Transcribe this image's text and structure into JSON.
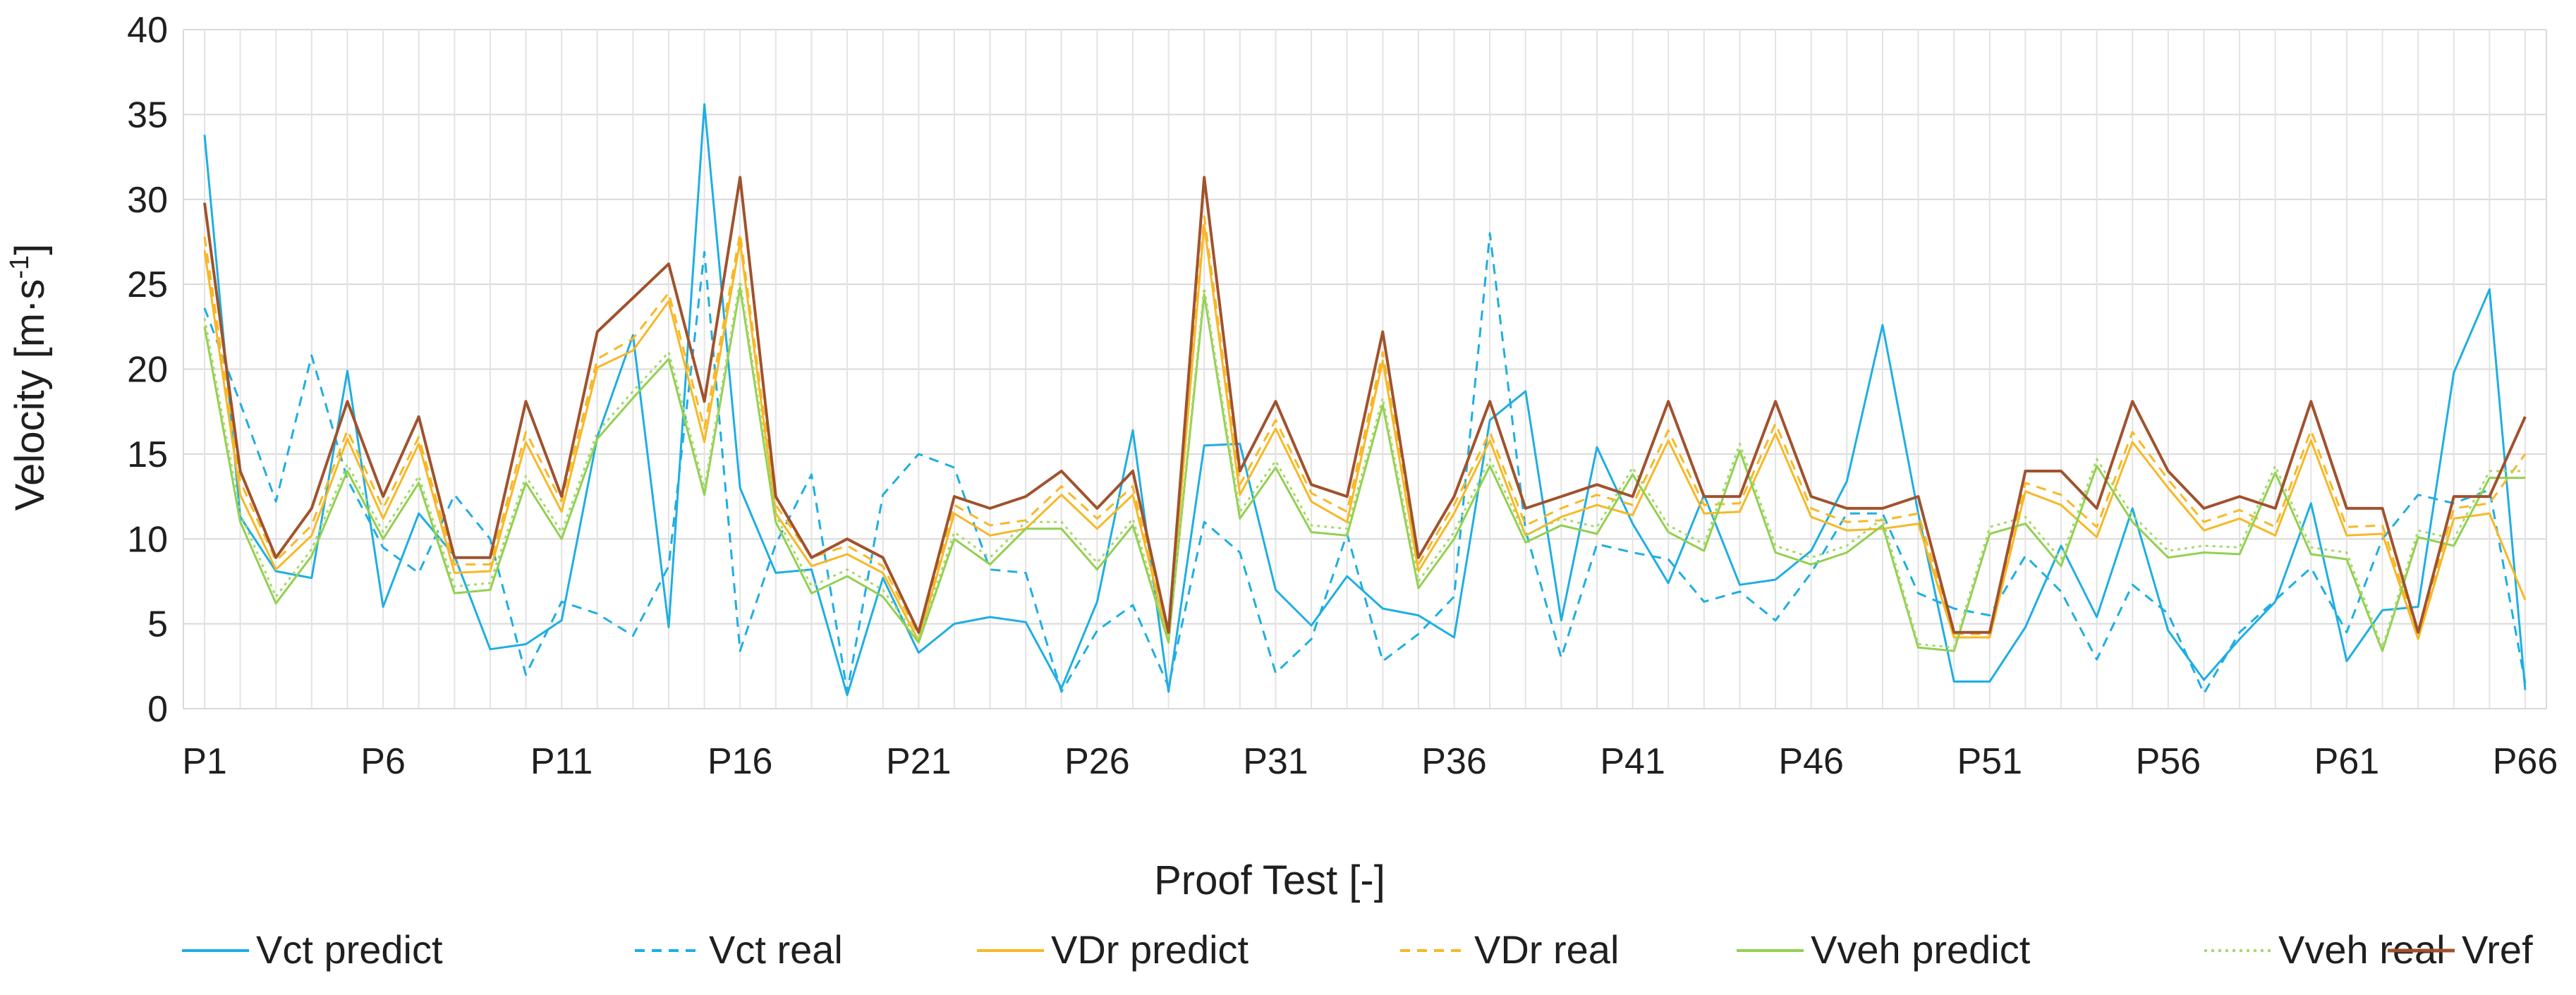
{
  "chart_data": {
    "type": "line",
    "title": "",
    "xlabel": "Proof Test [-]",
    "ylabel": "Velocity [m·s-1]",
    "ylabel_parts": {
      "base": "Velocity [m·s",
      "sup": "-1",
      "end": "]"
    },
    "ylim": [
      0,
      40
    ],
    "yticks": [
      0,
      5,
      10,
      15,
      20,
      25,
      30,
      35,
      40
    ],
    "grid": true,
    "legend_position": "bottom",
    "categories": [
      "P1",
      "P2",
      "P3",
      "P4",
      "P5",
      "P6",
      "P7",
      "P8",
      "P9",
      "P10",
      "P11",
      "P12",
      "P13",
      "P14",
      "P15",
      "P16",
      "P17",
      "P18",
      "P19",
      "P20",
      "P21",
      "P22",
      "P23",
      "P24",
      "P25",
      "P26",
      "P27",
      "P28",
      "P29",
      "P30",
      "P31",
      "P32",
      "P33",
      "P34",
      "P35",
      "P36",
      "P37",
      "P38",
      "P39",
      "P40",
      "P41",
      "P42",
      "P43",
      "P44",
      "P45",
      "P46",
      "P47",
      "P48",
      "P49",
      "P50",
      "P51",
      "P52",
      "P53",
      "P54",
      "P55",
      "P56",
      "P57",
      "P58",
      "P59",
      "P60",
      "P61",
      "P62",
      "P63",
      "P64",
      "P65",
      "P66"
    ],
    "tick_labels": [
      "P1",
      "P6",
      "P11",
      "P16",
      "P21",
      "P26",
      "P31",
      "P36",
      "P41",
      "P46",
      "P51",
      "P56",
      "P61",
      "P66"
    ],
    "series": [
      {
        "name": "Vct predict",
        "color": "#1eaee3",
        "dash": "solid",
        "width": 3,
        "values": [
          33.8,
          11.3,
          8.1,
          7.7,
          19.9,
          6.0,
          11.5,
          9.0,
          3.5,
          3.8,
          5.2,
          16.0,
          22.0,
          4.8,
          35.6,
          13.0,
          8.0,
          8.2,
          0.8,
          7.7,
          3.3,
          5.0,
          5.4,
          5.1,
          1.2,
          6.3,
          16.4,
          1.0,
          15.5,
          15.6,
          7.0,
          4.9,
          7.8,
          5.9,
          5.5,
          4.2,
          17.0,
          18.7,
          5.2,
          15.4,
          10.9,
          7.4,
          12.6,
          7.3,
          7.6,
          9.3,
          13.4,
          22.6,
          11.5,
          1.6,
          1.6,
          4.8,
          9.6,
          5.4,
          11.8,
          4.6,
          1.7,
          4.1,
          6.3,
          12.1,
          2.8,
          5.8,
          6.0,
          19.8,
          24.7,
          1.1
        ]
      },
      {
        "name": "Vct real",
        "color": "#1eaee3",
        "dash": "dashed",
        "width": 3,
        "values": [
          23.6,
          18.0,
          12.2,
          20.8,
          13.5,
          9.5,
          8.0,
          12.6,
          10.0,
          2.0,
          6.3,
          5.6,
          4.3,
          8.4,
          26.9,
          3.4,
          9.7,
          13.8,
          1.0,
          12.6,
          15.0,
          14.2,
          8.2,
          8.0,
          1.0,
          4.6,
          6.1,
          1.3,
          11.0,
          9.2,
          2.1,
          4.1,
          10.3,
          2.8,
          4.4,
          6.6,
          28.0,
          10.5,
          3.0,
          9.7,
          9.2,
          8.8,
          6.3,
          6.9,
          5.2,
          8.0,
          11.5,
          11.5,
          6.8,
          5.9,
          5.5,
          9.0,
          6.9,
          2.9,
          7.3,
          5.6,
          0.9,
          4.5,
          6.4,
          8.3,
          4.5,
          10.0,
          12.6,
          12.1,
          12.9,
          1.5
        ]
      },
      {
        "name": "VDr predict",
        "color": "#f7b825",
        "dash": "solid",
        "width": 3,
        "values": [
          27.0,
          12.6,
          8.2,
          10.2,
          15.9,
          11.2,
          15.6,
          8.0,
          8.1,
          15.7,
          11.6,
          20.1,
          21.1,
          24.0,
          15.7,
          27.5,
          11.5,
          8.4,
          9.1,
          8.0,
          4.0,
          11.5,
          10.2,
          10.6,
          12.6,
          10.6,
          12.6,
          4.0,
          28.5,
          12.6,
          16.5,
          12.2,
          11.0,
          20.5,
          8.1,
          11.5,
          15.8,
          10.2,
          11.3,
          12.0,
          11.4,
          15.8,
          11.5,
          11.6,
          16.2,
          11.3,
          10.5,
          10.6,
          10.9,
          4.2,
          4.2,
          12.8,
          12.0,
          10.1,
          15.7,
          13.0,
          10.5,
          11.2,
          10.2,
          15.8,
          10.2,
          10.3,
          4.1,
          11.2,
          11.5,
          6.4
        ]
      },
      {
        "name": "VDr real",
        "color": "#f7b825",
        "dash": "dashed",
        "width": 3,
        "values": [
          27.8,
          13.4,
          8.7,
          10.8,
          16.4,
          11.8,
          16.0,
          8.5,
          8.5,
          16.3,
          12.2,
          20.6,
          21.8,
          24.5,
          16.5,
          28.0,
          12.0,
          8.9,
          9.6,
          8.4,
          4.3,
          12.0,
          10.8,
          11.1,
          13.1,
          11.2,
          13.1,
          4.3,
          29.0,
          13.2,
          17.0,
          12.7,
          11.6,
          21.0,
          8.5,
          12.0,
          16.3,
          10.8,
          11.8,
          12.6,
          12.0,
          16.4,
          12.0,
          12.1,
          16.8,
          11.8,
          11.0,
          11.1,
          11.5,
          4.4,
          4.4,
          13.3,
          12.6,
          10.7,
          16.3,
          13.5,
          11.0,
          11.7,
          10.7,
          16.4,
          10.7,
          10.8,
          4.3,
          11.8,
          12.1,
          15.0
        ]
      },
      {
        "name": "Vveh predict",
        "color": "#92d050",
        "dash": "solid",
        "width": 3,
        "values": [
          22.5,
          11.0,
          6.2,
          9.0,
          14.0,
          10.0,
          13.3,
          6.8,
          7.0,
          13.3,
          10.0,
          15.9,
          18.3,
          20.6,
          12.6,
          24.8,
          11.0,
          6.8,
          7.8,
          6.6,
          3.9,
          10.0,
          8.5,
          10.6,
          10.6,
          8.2,
          10.8,
          3.9,
          24.4,
          11.2,
          14.2,
          10.4,
          10.2,
          17.9,
          7.1,
          10.0,
          14.3,
          9.8,
          10.8,
          10.3,
          13.8,
          10.4,
          9.3,
          15.2,
          9.2,
          8.5,
          9.2,
          10.8,
          3.6,
          3.4,
          10.3,
          10.9,
          8.4,
          14.3,
          11.0,
          8.9,
          9.2,
          9.1,
          13.9,
          9.1,
          8.8,
          3.4,
          10.1,
          9.6,
          13.6,
          13.6
        ]
      },
      {
        "name": "Vveh real",
        "color": "#a8d86e",
        "dash": "dotted",
        "width": 3,
        "values": [
          23.0,
          11.5,
          6.6,
          9.4,
          14.4,
          10.4,
          13.7,
          7.2,
          7.4,
          13.7,
          10.4,
          16.3,
          18.7,
          21.0,
          13.0,
          25.2,
          11.4,
          7.2,
          8.2,
          7.0,
          4.1,
          10.4,
          8.9,
          11.0,
          11.0,
          8.6,
          11.2,
          4.1,
          24.8,
          11.6,
          14.6,
          10.8,
          10.6,
          18.3,
          7.5,
          10.4,
          14.7,
          10.2,
          11.2,
          10.7,
          14.2,
          10.8,
          9.7,
          15.6,
          9.6,
          8.9,
          9.6,
          11.2,
          3.8,
          3.6,
          10.7,
          11.3,
          8.8,
          14.7,
          11.4,
          9.3,
          9.6,
          9.5,
          14.3,
          9.5,
          9.2,
          3.6,
          10.5,
          10.0,
          14.0,
          14.0
        ]
      },
      {
        "name": "Vref",
        "color": "#a0522d",
        "dash": "solid",
        "width": 4,
        "values": [
          29.8,
          14.0,
          8.9,
          11.8,
          18.1,
          12.5,
          17.2,
          8.9,
          8.9,
          18.1,
          12.5,
          22.2,
          24.2,
          26.2,
          18.1,
          31.3,
          12.5,
          8.9,
          10.0,
          8.9,
          4.5,
          12.5,
          11.8,
          12.5,
          14.0,
          11.8,
          14.0,
          4.5,
          31.3,
          14.0,
          18.1,
          13.2,
          12.5,
          22.2,
          8.9,
          12.5,
          18.1,
          11.8,
          12.5,
          13.2,
          12.5,
          18.1,
          12.5,
          12.5,
          18.1,
          12.5,
          11.8,
          11.8,
          12.5,
          4.5,
          4.5,
          14.0,
          14.0,
          11.8,
          18.1,
          14.0,
          11.8,
          12.5,
          11.8,
          18.1,
          11.8,
          11.8,
          4.5,
          12.5,
          12.5,
          17.2
        ]
      }
    ]
  }
}
